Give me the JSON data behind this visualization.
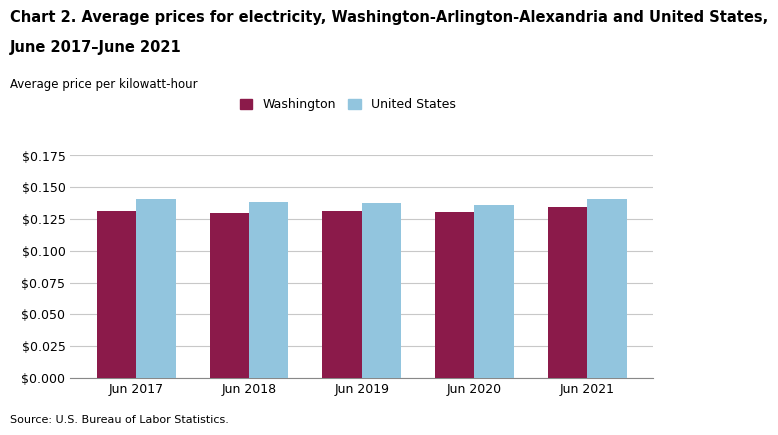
{
  "title_line1": "Chart 2. Average prices for electricity, Washington-Arlington-Alexandria and United States,",
  "title_line2": "June 2017–June 2021",
  "ylabel_text": "Average price per kilowatt-hour",
  "source": "Source: U.S. Bureau of Labor Statistics.",
  "categories": [
    "Jun 2017",
    "Jun 2018",
    "Jun 2019",
    "Jun 2020",
    "Jun 2021"
  ],
  "washington_values": [
    0.1315,
    0.1295,
    0.1315,
    0.1305,
    0.1345
  ],
  "us_values": [
    0.1405,
    0.1385,
    0.1375,
    0.136,
    0.1405
  ],
  "washington_color": "#8B1A4A",
  "us_color": "#92C5DE",
  "ylim": [
    0,
    0.175
  ],
  "yticks": [
    0.0,
    0.025,
    0.05,
    0.075,
    0.1,
    0.125,
    0.15,
    0.175
  ],
  "legend_washington": "Washington",
  "legend_us": "United States",
  "bar_width": 0.35,
  "title_fontsize": 10.5,
  "small_fontsize": 8.5,
  "tick_fontsize": 9,
  "legend_fontsize": 9,
  "source_fontsize": 8,
  "background_color": "#ffffff",
  "grid_color": "#c8c8c8"
}
